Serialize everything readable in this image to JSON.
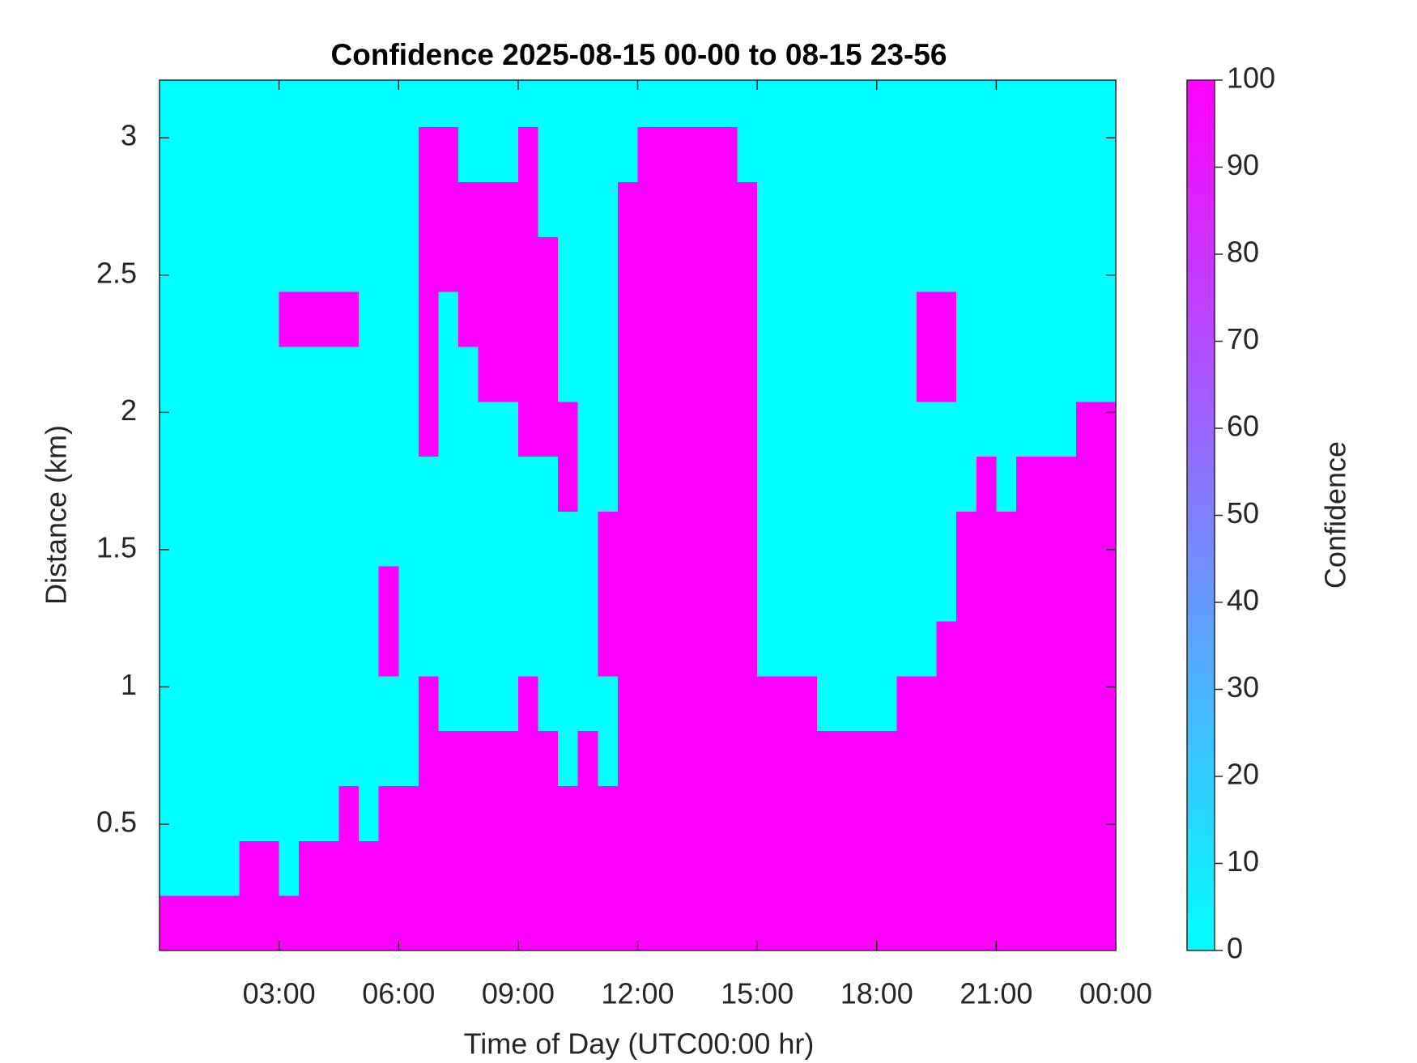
{
  "chart_data": {
    "type": "heatmap",
    "title": "Confidence 2025-08-15 00-00 to 08-15 23-56",
    "x_label": "Time of Day (UTC00:00 hr)",
    "y_label": "Distance (km)",
    "colorbar_label": "Confidence",
    "colormap": [
      "#00ffff",
      "#ff00ff"
    ],
    "clim": [
      0,
      100
    ],
    "cticks": [
      0,
      10,
      20,
      30,
      40,
      50,
      60,
      70,
      80,
      90,
      100
    ],
    "xlim": [
      0,
      24
    ],
    "xticks": [
      {
        "value": 3,
        "label": "03:00"
      },
      {
        "value": 6,
        "label": "06:00"
      },
      {
        "value": 9,
        "label": "09:00"
      },
      {
        "value": 12,
        "label": "12:00"
      },
      {
        "value": 15,
        "label": "15:00"
      },
      {
        "value": 18,
        "label": "18:00"
      },
      {
        "value": 21,
        "label": "21:00"
      },
      {
        "value": 24,
        "label": "00:00"
      }
    ],
    "ylim": [
      0.04,
      3.21
    ],
    "yticks": [
      0.5,
      1,
      1.5,
      2,
      2.5,
      3
    ],
    "x": [
      0.25,
      0.75,
      1.25,
      1.75,
      2.25,
      2.75,
      3.25,
      3.75,
      4.25,
      4.75,
      5.25,
      5.75,
      6.25,
      6.75,
      7.25,
      7.75,
      8.25,
      8.75,
      9.25,
      9.75,
      10.25,
      10.75,
      11.25,
      11.75,
      12.25,
      12.75,
      13.25,
      13.75,
      14.25,
      14.75,
      15.25,
      15.75,
      16.25,
      16.75,
      17.25,
      17.75,
      18.25,
      18.75,
      19.25,
      19.75,
      20.25,
      20.75,
      21.25,
      21.75,
      22.25,
      22.75,
      23.25,
      23.75
    ],
    "y": [
      0.14,
      0.34,
      0.54,
      0.74,
      0.94,
      1.14,
      1.34,
      1.54,
      1.74,
      1.94,
      2.14,
      2.34,
      2.54,
      2.74,
      2.94,
      3.14
    ],
    "z": [
      [
        100,
        100,
        100,
        100,
        100,
        100,
        100,
        100,
        100,
        100,
        100,
        100,
        100,
        100,
        100,
        100,
        100,
        100,
        100,
        100,
        100,
        100,
        100,
        100,
        100,
        100,
        100,
        100,
        100,
        100,
        100,
        100,
        100,
        100,
        100,
        100,
        100,
        100,
        100,
        100,
        100,
        100,
        100,
        100,
        100,
        100,
        100,
        100
      ],
      [
        0,
        0,
        0,
        0,
        100,
        100,
        0,
        100,
        100,
        100,
        100,
        100,
        100,
        100,
        100,
        100,
        100,
        100,
        100,
        100,
        100,
        100,
        100,
        100,
        100,
        100,
        100,
        100,
        100,
        100,
        100,
        100,
        100,
        100,
        100,
        100,
        100,
        100,
        100,
        100,
        100,
        100,
        100,
        100,
        100,
        100,
        100,
        100
      ],
      [
        0,
        0,
        0,
        0,
        0,
        0,
        0,
        0,
        0,
        100,
        0,
        100,
        100,
        100,
        100,
        100,
        100,
        100,
        100,
        100,
        100,
        100,
        100,
        100,
        100,
        100,
        100,
        100,
        100,
        100,
        100,
        100,
        100,
        100,
        100,
        100,
        100,
        100,
        100,
        100,
        100,
        100,
        100,
        100,
        100,
        100,
        100,
        100
      ],
      [
        0,
        0,
        0,
        0,
        0,
        0,
        0,
        0,
        0,
        0,
        0,
        0,
        0,
        100,
        100,
        100,
        100,
        100,
        100,
        100,
        0,
        100,
        0,
        100,
        100,
        100,
        100,
        100,
        100,
        100,
        100,
        100,
        100,
        100,
        100,
        100,
        100,
        100,
        100,
        100,
        100,
        100,
        100,
        100,
        100,
        100,
        100,
        100
      ],
      [
        0,
        0,
        0,
        0,
        0,
        0,
        0,
        0,
        0,
        0,
        0,
        0,
        0,
        100,
        0,
        0,
        0,
        0,
        100,
        0,
        0,
        0,
        0,
        100,
        100,
        100,
        100,
        100,
        100,
        100,
        100,
        100,
        100,
        0,
        0,
        0,
        0,
        100,
        100,
        100,
        100,
        100,
        100,
        100,
        100,
        100,
        100,
        100
      ],
      [
        0,
        0,
        0,
        0,
        0,
        0,
        0,
        0,
        0,
        0,
        0,
        100,
        0,
        0,
        0,
        0,
        0,
        0,
        0,
        0,
        0,
        0,
        100,
        100,
        100,
        100,
        100,
        100,
        100,
        100,
        0,
        0,
        0,
        0,
        0,
        0,
        0,
        0,
        0,
        100,
        100,
        100,
        100,
        100,
        100,
        100,
        100,
        100
      ],
      [
        0,
        0,
        0,
        0,
        0,
        0,
        0,
        0,
        0,
        0,
        0,
        100,
        0,
        0,
        0,
        0,
        0,
        0,
        0,
        0,
        0,
        0,
        100,
        100,
        100,
        100,
        100,
        100,
        100,
        100,
        0,
        0,
        0,
        0,
        0,
        0,
        0,
        0,
        0,
        0,
        100,
        100,
        100,
        100,
        100,
        100,
        100,
        100
      ],
      [
        0,
        0,
        0,
        0,
        0,
        0,
        0,
        0,
        0,
        0,
        0,
        0,
        0,
        0,
        0,
        0,
        0,
        0,
        0,
        0,
        0,
        0,
        100,
        100,
        100,
        100,
        100,
        100,
        100,
        100,
        0,
        0,
        0,
        0,
        0,
        0,
        0,
        0,
        0,
        0,
        100,
        100,
        100,
        100,
        100,
        100,
        100,
        100
      ],
      [
        0,
        0,
        0,
        0,
        0,
        0,
        0,
        0,
        0,
        0,
        0,
        0,
        0,
        0,
        0,
        0,
        0,
        0,
        0,
        0,
        100,
        0,
        0,
        100,
        100,
        100,
        100,
        100,
        100,
        100,
        0,
        0,
        0,
        0,
        0,
        0,
        0,
        0,
        0,
        0,
        0,
        100,
        0,
        100,
        100,
        100,
        100,
        100
      ],
      [
        0,
        0,
        0,
        0,
        0,
        0,
        0,
        0,
        0,
        0,
        0,
        0,
        0,
        100,
        0,
        0,
        0,
        0,
        100,
        100,
        100,
        0,
        0,
        100,
        100,
        100,
        100,
        100,
        100,
        100,
        0,
        0,
        0,
        0,
        0,
        0,
        0,
        0,
        0,
        0,
        0,
        0,
        0,
        0,
        0,
        0,
        100,
        100
      ],
      [
        0,
        0,
        0,
        0,
        0,
        0,
        0,
        0,
        0,
        0,
        0,
        0,
        0,
        100,
        0,
        0,
        100,
        100,
        100,
        100,
        0,
        0,
        0,
        100,
        100,
        100,
        100,
        100,
        100,
        100,
        0,
        0,
        0,
        0,
        0,
        0,
        0,
        0,
        100,
        100,
        0,
        0,
        0,
        0,
        0,
        0,
        0,
        0
      ],
      [
        0,
        0,
        0,
        0,
        0,
        0,
        100,
        100,
        100,
        100,
        0,
        0,
        0,
        100,
        0,
        100,
        100,
        100,
        100,
        100,
        0,
        0,
        0,
        100,
        100,
        100,
        100,
        100,
        100,
        100,
        0,
        0,
        0,
        0,
        0,
        0,
        0,
        0,
        100,
        100,
        0,
        0,
        0,
        0,
        0,
        0,
        0,
        0
      ],
      [
        0,
        0,
        0,
        0,
        0,
        0,
        0,
        0,
        0,
        0,
        0,
        0,
        0,
        100,
        100,
        100,
        100,
        100,
        100,
        100,
        0,
        0,
        0,
        100,
        100,
        100,
        100,
        100,
        100,
        100,
        0,
        0,
        0,
        0,
        0,
        0,
        0,
        0,
        0,
        0,
        0,
        0,
        0,
        0,
        0,
        0,
        0,
        0
      ],
      [
        0,
        0,
        0,
        0,
        0,
        0,
        0,
        0,
        0,
        0,
        0,
        0,
        0,
        100,
        100,
        100,
        100,
        100,
        100,
        0,
        0,
        0,
        0,
        100,
        100,
        100,
        100,
        100,
        100,
        100,
        0,
        0,
        0,
        0,
        0,
        0,
        0,
        0,
        0,
        0,
        0,
        0,
        0,
        0,
        0,
        0,
        0,
        0
      ],
      [
        0,
        0,
        0,
        0,
        0,
        0,
        0,
        0,
        0,
        0,
        0,
        0,
        0,
        100,
        100,
        0,
        0,
        0,
        100,
        0,
        0,
        0,
        0,
        0,
        100,
        100,
        100,
        100,
        100,
        0,
        0,
        0,
        0,
        0,
        0,
        0,
        0,
        0,
        0,
        0,
        0,
        0,
        0,
        0,
        0,
        0,
        0,
        0
      ],
      [
        0,
        0,
        0,
        0,
        0,
        0,
        0,
        0,
        0,
        0,
        0,
        0,
        0,
        0,
        0,
        0,
        0,
        0,
        0,
        0,
        0,
        0,
        0,
        0,
        0,
        0,
        0,
        0,
        0,
        0,
        0,
        0,
        0,
        0,
        0,
        0,
        0,
        0,
        0,
        0,
        0,
        0,
        0,
        0,
        0,
        0,
        0,
        0
      ]
    ]
  }
}
